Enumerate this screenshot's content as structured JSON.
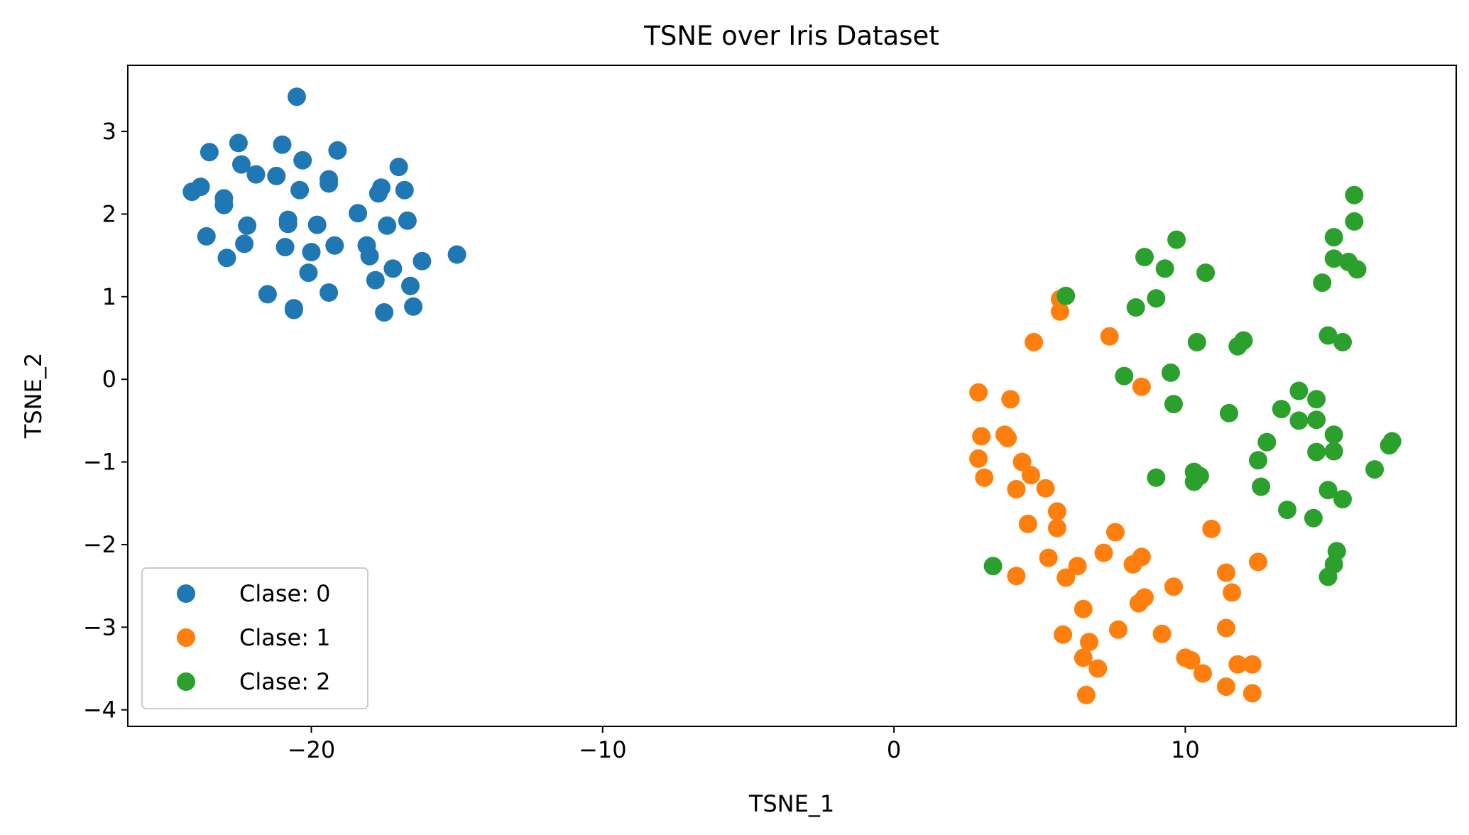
{
  "chart_data": {
    "type": "scatter",
    "title": "TSNE over Iris Dataset",
    "xlabel": "TSNE_1",
    "ylabel": "TSNE_2",
    "xlim": [
      -26.3,
      19.3
    ],
    "ylim": [
      -4.2,
      3.8
    ],
    "xticks": [
      -20,
      -10,
      0,
      10
    ],
    "xtick_labels": [
      "−20",
      "−10",
      "0",
      "10"
    ],
    "yticks": [
      3,
      2,
      1,
      0,
      -1,
      -2,
      -3,
      -4
    ],
    "ytick_labels": [
      "3",
      "2",
      "1",
      "0",
      "−1",
      "−2",
      "−3",
      "−4"
    ],
    "grid": false,
    "legend_position": "lower-left",
    "series": [
      {
        "name": "Clase: 0",
        "color": "#1f77b4",
        "points": [
          [
            -20.5,
            3.42
          ],
          [
            -23.5,
            2.75
          ],
          [
            -22.5,
            2.86
          ],
          [
            -21.0,
            2.84
          ],
          [
            -20.3,
            2.65
          ],
          [
            -19.1,
            2.77
          ],
          [
            -22.4,
            2.6
          ],
          [
            -21.9,
            2.48
          ],
          [
            -21.2,
            2.46
          ],
          [
            -17.0,
            2.57
          ],
          [
            -19.4,
            2.42
          ],
          [
            -19.4,
            2.37
          ],
          [
            -24.1,
            2.27
          ],
          [
            -23.8,
            2.33
          ],
          [
            -23.0,
            2.19
          ],
          [
            -23.0,
            2.11
          ],
          [
            -20.4,
            2.29
          ],
          [
            -17.6,
            2.32
          ],
          [
            -17.7,
            2.25
          ],
          [
            -16.8,
            2.29
          ],
          [
            -18.4,
            2.01
          ],
          [
            -22.2,
            1.86
          ],
          [
            -20.8,
            1.93
          ],
          [
            -20.8,
            1.88
          ],
          [
            -19.8,
            1.87
          ],
          [
            -17.4,
            1.86
          ],
          [
            -16.7,
            1.92
          ],
          [
            -23.6,
            1.73
          ],
          [
            -22.3,
            1.64
          ],
          [
            -20.9,
            1.6
          ],
          [
            -19.2,
            1.62
          ],
          [
            -20.0,
            1.54
          ],
          [
            -18.1,
            1.62
          ],
          [
            -18.0,
            1.49
          ],
          [
            -22.9,
            1.47
          ],
          [
            -16.2,
            1.43
          ],
          [
            -15.0,
            1.51
          ],
          [
            -20.1,
            1.29
          ],
          [
            -17.8,
            1.2
          ],
          [
            -17.2,
            1.34
          ],
          [
            -16.6,
            1.13
          ],
          [
            -21.5,
            1.03
          ],
          [
            -19.4,
            1.05
          ],
          [
            -20.6,
            0.84
          ],
          [
            -20.6,
            0.86
          ],
          [
            -17.5,
            0.81
          ],
          [
            -16.5,
            0.88
          ]
        ]
      },
      {
        "name": "Clase: 1",
        "color": "#ff7f0e",
        "points": [
          [
            5.7,
            0.97
          ],
          [
            5.7,
            0.82
          ],
          [
            7.4,
            0.52
          ],
          [
            4.8,
            0.45
          ],
          [
            2.9,
            -0.16
          ],
          [
            4.0,
            -0.24
          ],
          [
            8.5,
            -0.09
          ],
          [
            3.0,
            -0.69
          ],
          [
            3.8,
            -0.67
          ],
          [
            3.9,
            -0.71
          ],
          [
            2.9,
            -0.96
          ],
          [
            4.4,
            -1.0
          ],
          [
            3.1,
            -1.19
          ],
          [
            4.7,
            -1.16
          ],
          [
            4.2,
            -1.33
          ],
          [
            5.2,
            -1.32
          ],
          [
            5.6,
            -1.6
          ],
          [
            4.6,
            -1.75
          ],
          [
            5.6,
            -1.8
          ],
          [
            7.6,
            -1.85
          ],
          [
            10.9,
            -1.81
          ],
          [
            7.2,
            -2.1
          ],
          [
            5.3,
            -2.16
          ],
          [
            8.2,
            -2.24
          ],
          [
            8.5,
            -2.15
          ],
          [
            6.3,
            -2.26
          ],
          [
            12.5,
            -2.21
          ],
          [
            4.2,
            -2.38
          ],
          [
            5.9,
            -2.4
          ],
          [
            11.4,
            -2.34
          ],
          [
            9.6,
            -2.51
          ],
          [
            11.6,
            -2.58
          ],
          [
            8.6,
            -2.64
          ],
          [
            8.4,
            -2.71
          ],
          [
            6.5,
            -2.78
          ],
          [
            11.4,
            -3.01
          ],
          [
            7.7,
            -3.03
          ],
          [
            9.2,
            -3.08
          ],
          [
            5.8,
            -3.09
          ],
          [
            6.7,
            -3.18
          ],
          [
            10.0,
            -3.37
          ],
          [
            10.2,
            -3.4
          ],
          [
            6.5,
            -3.37
          ],
          [
            7.0,
            -3.5
          ],
          [
            10.6,
            -3.56
          ],
          [
            11.8,
            -3.45
          ],
          [
            12.3,
            -3.45
          ],
          [
            11.4,
            -3.72
          ],
          [
            12.3,
            -3.8
          ],
          [
            6.6,
            -3.82
          ]
        ]
      },
      {
        "name": "Clase: 2",
        "color": "#2ca02c",
        "points": [
          [
            15.8,
            2.23
          ],
          [
            15.8,
            1.91
          ],
          [
            15.1,
            1.72
          ],
          [
            9.7,
            1.69
          ],
          [
            8.6,
            1.48
          ],
          [
            15.1,
            1.46
          ],
          [
            15.6,
            1.42
          ],
          [
            15.9,
            1.33
          ],
          [
            9.3,
            1.34
          ],
          [
            10.7,
            1.29
          ],
          [
            14.7,
            1.17
          ],
          [
            5.9,
            1.01
          ],
          [
            9.0,
            0.98
          ],
          [
            8.3,
            0.87
          ],
          [
            14.9,
            0.53
          ],
          [
            15.4,
            0.45
          ],
          [
            10.4,
            0.45
          ],
          [
            12.0,
            0.47
          ],
          [
            11.8,
            0.4
          ],
          [
            7.9,
            0.04
          ],
          [
            9.5,
            0.08
          ],
          [
            13.9,
            -0.14
          ],
          [
            14.5,
            -0.24
          ],
          [
            9.6,
            -0.3
          ],
          [
            13.3,
            -0.36
          ],
          [
            11.5,
            -0.41
          ],
          [
            13.9,
            -0.5
          ],
          [
            14.5,
            -0.49
          ],
          [
            15.1,
            -0.67
          ],
          [
            12.8,
            -0.76
          ],
          [
            17.1,
            -0.75
          ],
          [
            17.0,
            -0.8
          ],
          [
            14.5,
            -0.88
          ],
          [
            15.1,
            -0.87
          ],
          [
            12.5,
            -0.98
          ],
          [
            16.5,
            -1.09
          ],
          [
            10.3,
            -1.12
          ],
          [
            10.5,
            -1.17
          ],
          [
            9.0,
            -1.19
          ],
          [
            10.3,
            -1.24
          ],
          [
            12.6,
            -1.3
          ],
          [
            14.9,
            -1.34
          ],
          [
            15.4,
            -1.45
          ],
          [
            13.5,
            -1.58
          ],
          [
            14.4,
            -1.68
          ],
          [
            15.2,
            -2.08
          ],
          [
            15.1,
            -2.24
          ],
          [
            3.4,
            -2.26
          ],
          [
            14.9,
            -2.39
          ]
        ]
      }
    ]
  }
}
